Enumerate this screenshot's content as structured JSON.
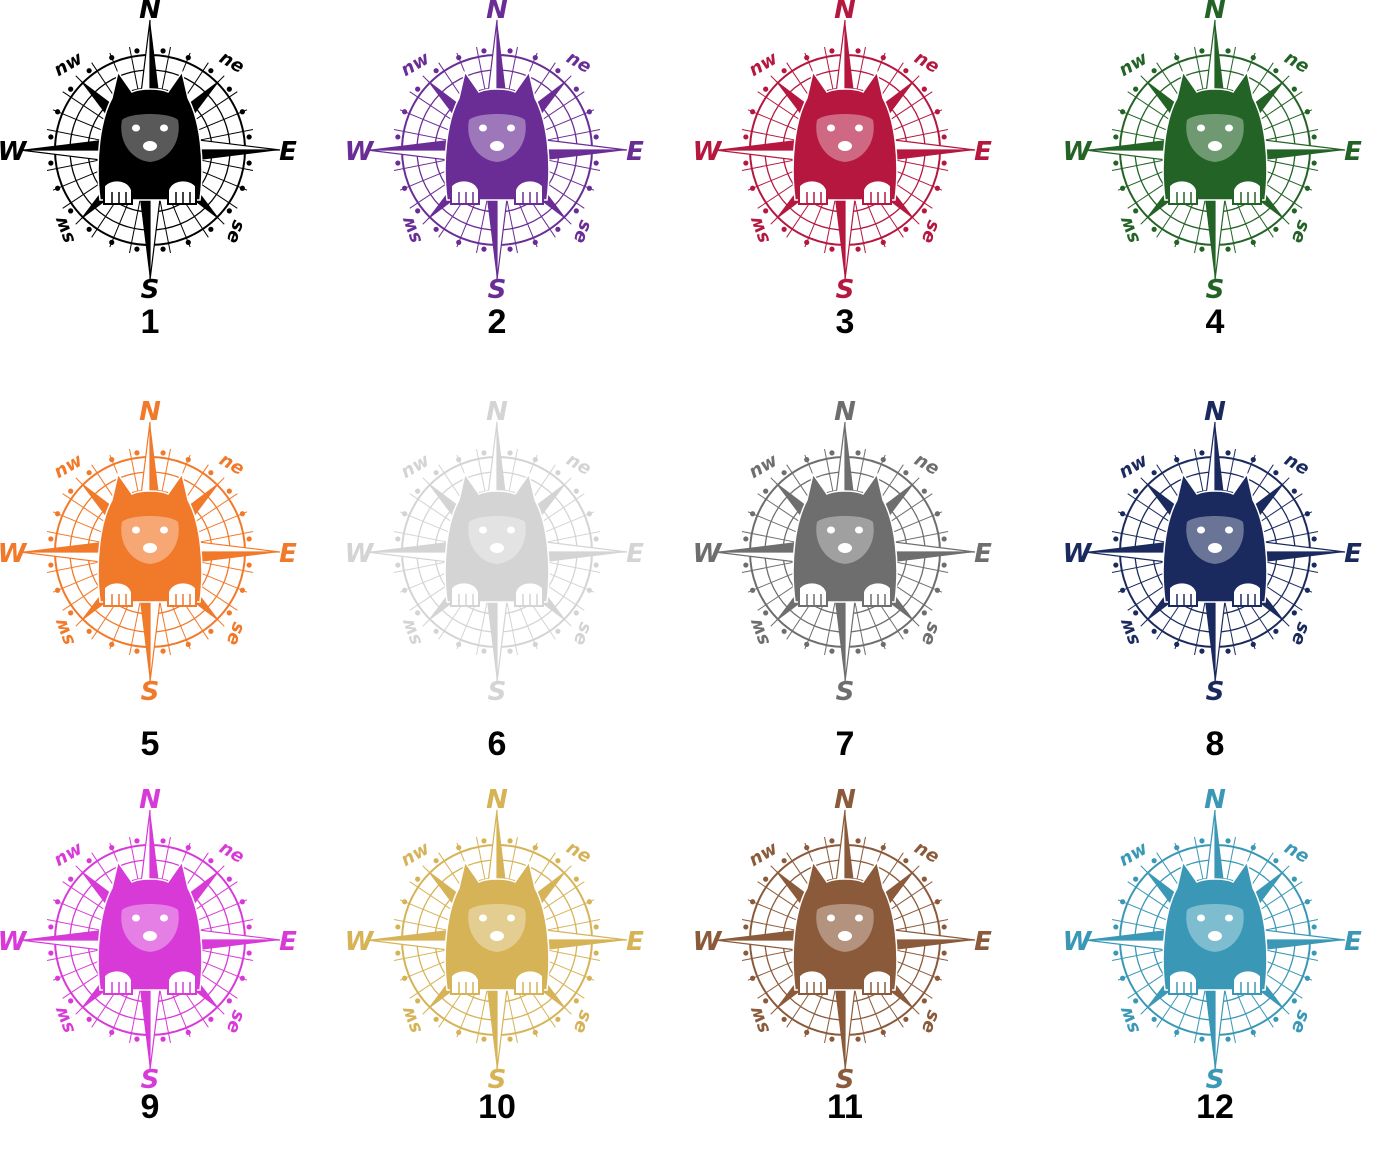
{
  "labels": {
    "n": "N",
    "e": "E",
    "s": "S",
    "w": "W",
    "ne": "ne",
    "nw": "nw",
    "se": "se",
    "sw": "sw"
  },
  "variants": [
    {
      "number": "1",
      "color": "#000000"
    },
    {
      "number": "2",
      "color": "#6a2d96"
    },
    {
      "number": "3",
      "color": "#b5173f"
    },
    {
      "number": "4",
      "color": "#236326"
    },
    {
      "number": "5",
      "color": "#f1792a"
    },
    {
      "number": "6",
      "color": "#d4d4d4"
    },
    {
      "number": "7",
      "color": "#6e6e6e"
    },
    {
      "number": "8",
      "color": "#1b2a5e"
    },
    {
      "number": "9",
      "color": "#d83ad8"
    },
    {
      "number": "10",
      "color": "#d6b357"
    },
    {
      "number": "11",
      "color": "#8a5a3a"
    },
    {
      "number": "12",
      "color": "#3a98b6"
    }
  ]
}
